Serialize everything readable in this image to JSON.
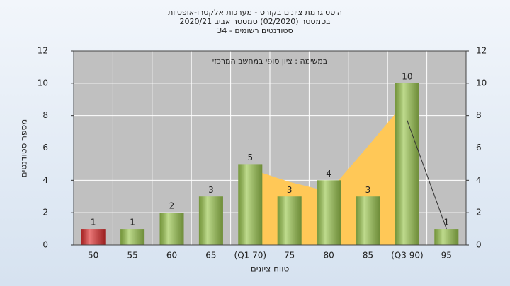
{
  "chart_data": {
    "type": "bar",
    "title": "היסטוגרמת ציונים בקורס - מערכות אלקטרו-אופטיות",
    "subtitle_lines": [
      "בסמסטר  (02/2020)  סמסטר אביב 2020/21",
      "סטודנטים רשומים - 34"
    ],
    "annotation": "במשימה : ציון סופי במחשב המרכזי",
    "xlabel": "טווח ציונים",
    "ylabel": "מספר סטודנטים",
    "categories": [
      "50",
      "55",
      "60",
      "65",
      "(Q1 70)",
      "75",
      "80",
      "85",
      "(Q3 90)",
      "95"
    ],
    "values": [
      1,
      1,
      2,
      3,
      5,
      3,
      4,
      3,
      10,
      1
    ],
    "colors": [
      "#e03030",
      "#9cc850",
      "#9cc850",
      "#9cc850",
      "#9cc850",
      "#9cc850",
      "#9cc850",
      "#9cc850",
      "#9cc850",
      "#9cc850"
    ],
    "area": {
      "color": "#ffc857",
      "values": [
        null,
        null,
        null,
        null,
        4.7,
        3.9,
        3.3,
        6.1,
        9,
        null
      ]
    },
    "whisker": {
      "color": "#333333",
      "values": [
        null,
        null,
        null,
        null,
        null,
        null,
        null,
        null,
        7.7,
        1
      ]
    },
    "ylim": [
      0,
      12
    ],
    "yticks": [
      0,
      2,
      4,
      6,
      8,
      10,
      12
    ],
    "y2lim": [
      0,
      12
    ],
    "y2ticks": [
      0,
      2,
      4,
      6,
      8,
      10,
      12
    ],
    "grid": true
  }
}
